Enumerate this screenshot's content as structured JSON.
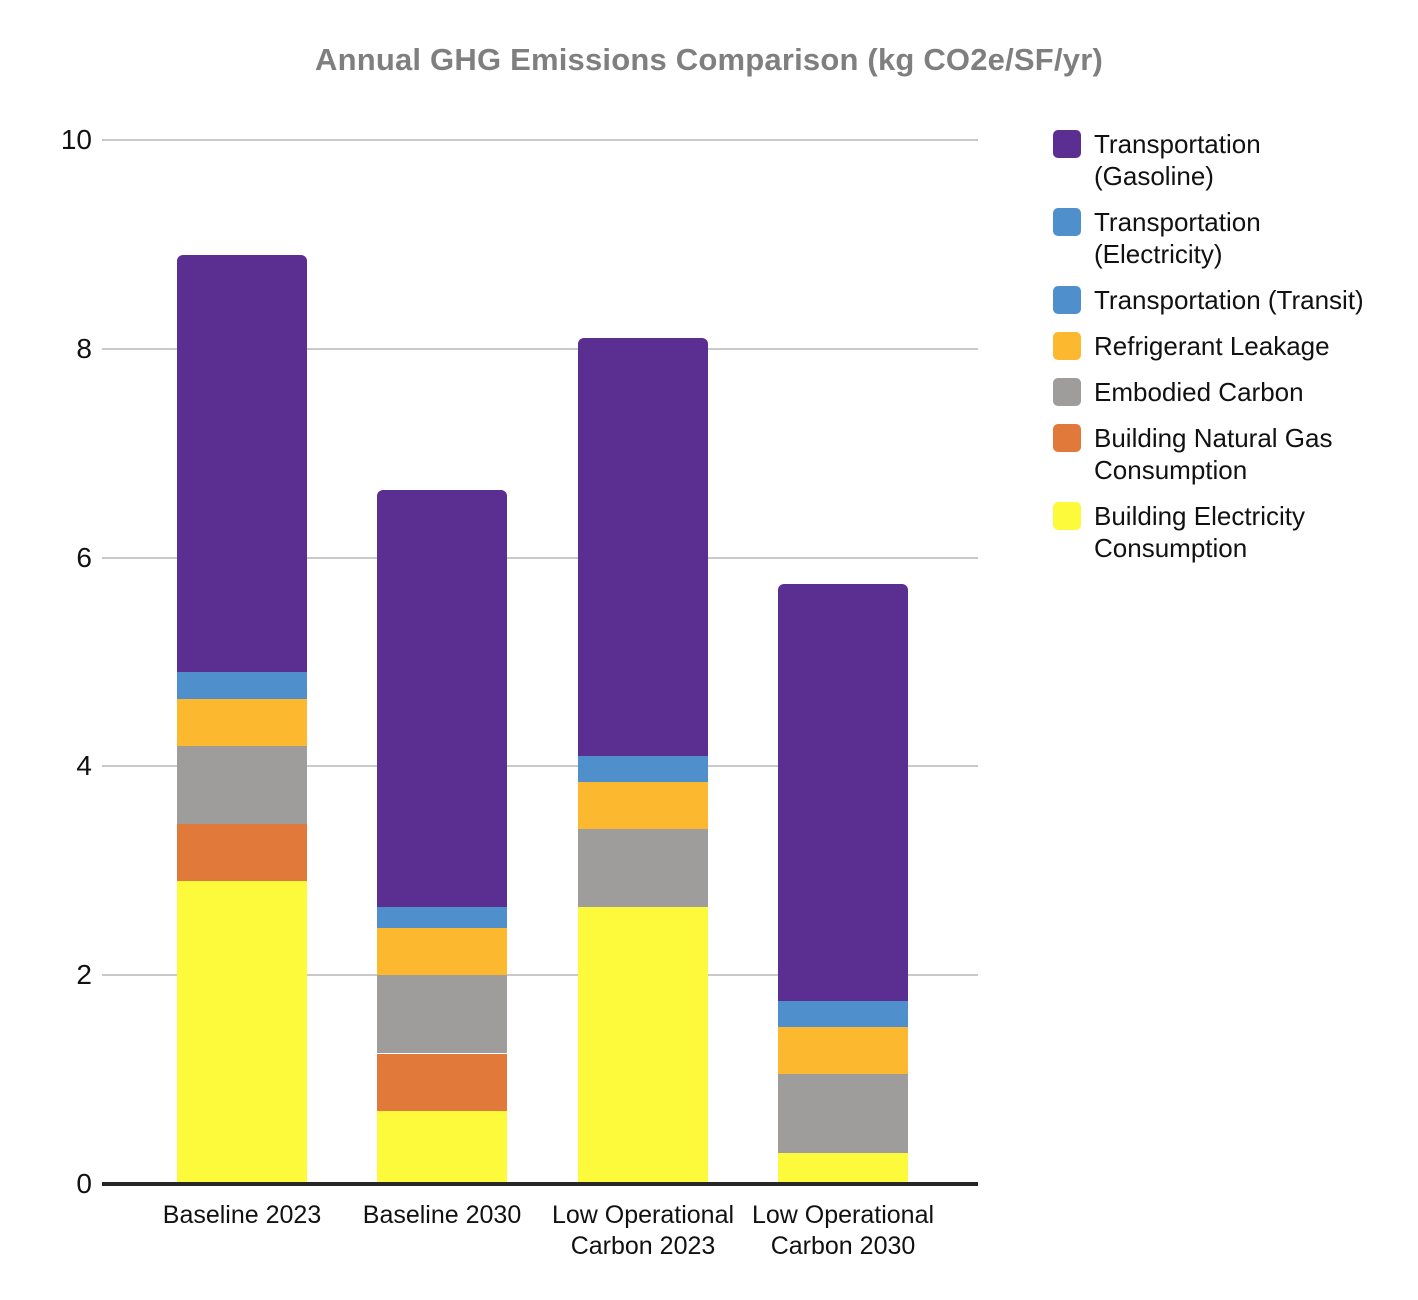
{
  "chart_data": {
    "type": "bar",
    "subtype": "stacked-vertical",
    "title": "Annual GHG Emissions Comparison (kg CO2e/SF/yr)",
    "unit": "kg CO2e/SF/yr",
    "grid": {
      "show": true,
      "color": "#c9c9c9"
    },
    "colors": {
      "axis_line": "#262626",
      "title_text": "#7f7f7f",
      "label_text": "#111111",
      "background": "#ffffff"
    },
    "y_axis": {
      "min": 0,
      "max": 10,
      "tick_step": 2,
      "ticks": [
        0,
        2,
        4,
        6,
        8,
        10
      ]
    },
    "categories": [
      {
        "label": "Baseline 2023",
        "lines": [
          "Baseline 2023"
        ]
      },
      {
        "label": "Baseline 2030",
        "lines": [
          "Baseline 2030"
        ]
      },
      {
        "label": "Low Operational Carbon 2023",
        "lines": [
          "Low Operational",
          "Carbon 2023"
        ]
      },
      {
        "label": "Low Operational Carbon 2030",
        "lines": [
          "Low Operational",
          "Carbon 2030"
        ]
      }
    ],
    "stack_order": "bottom-to-top",
    "series": [
      {
        "name": "Building Electricity Consumption",
        "color": "#FDFA3C",
        "values": [
          2.9,
          0.7,
          2.65,
          0.3
        ]
      },
      {
        "name": "Building Natural Gas Consumption",
        "color": "#E0793A",
        "values": [
          0.55,
          0.55,
          0,
          0
        ]
      },
      {
        "name": "Embodied Carbon",
        "color": "#9E9D9B",
        "values": [
          0.75,
          0.75,
          0.75,
          0.75
        ]
      },
      {
        "name": "Refrigerant Leakage",
        "color": "#FCB82E",
        "values": [
          0.45,
          0.45,
          0.45,
          0.45
        ]
      },
      {
        "name": "Transportation (Transit)",
        "color": "#4F90CC",
        "values": [
          0.2,
          0.2,
          0.2,
          0.2
        ]
      },
      {
        "name": "Transportation (Electricity)",
        "color": "#4F90CC",
        "values": [
          0.05,
          0,
          0.05,
          0.05
        ]
      },
      {
        "name": "Transportation (Gasoline)",
        "color": "#5B2E91",
        "values": [
          4.0,
          4.0,
          4.0,
          4.0
        ]
      }
    ],
    "totals": [
      8.9,
      6.65,
      8.1,
      5.75
    ],
    "legend": {
      "position": "right",
      "items": [
        {
          "series": "Transportation (Gasoline)",
          "lines": [
            "Transportation",
            "(Gasoline)"
          ]
        },
        {
          "series": "Transportation (Electricity)",
          "lines": [
            "Transportation",
            "(Electricity)"
          ]
        },
        {
          "series": "Transportation (Transit)",
          "lines": [
            "Transportation (Transit)"
          ]
        },
        {
          "series": "Refrigerant Leakage",
          "lines": [
            "Refrigerant Leakage"
          ]
        },
        {
          "series": "Embodied Carbon",
          "lines": [
            "Embodied Carbon"
          ]
        },
        {
          "series": "Building Natural Gas Consumption",
          "lines": [
            "Building Natural Gas",
            "Consumption"
          ]
        },
        {
          "series": "Building Electricity Consumption",
          "lines": [
            "Building Electricity",
            "Consumption"
          ]
        }
      ]
    }
  }
}
